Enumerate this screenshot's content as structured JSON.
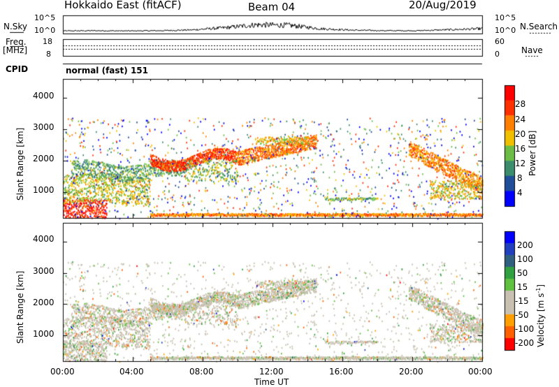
{
  "header": {
    "title": "Hokkaido East (fitACF)",
    "beam": "Beam 04",
    "date": "20/Aug/2019"
  },
  "strip_labels": {
    "nsky": "N.Sky",
    "nsearch": "N.Search",
    "freq": "Freq.",
    "freq_unit": "[MHz]",
    "nave": "Nave",
    "cpid": "CPID",
    "cpid_value": "normal (fast) 151"
  },
  "strip_ticks": {
    "nsky_top": "10^5",
    "nsky_bottom": "10^0",
    "nsearch_top": "10^5",
    "nsearch_bottom": "10^0",
    "freq_top": "18",
    "freq_bottom": "8",
    "nave_top": "60",
    "nave_bottom": "0"
  },
  "colors": {
    "power": [
      "#0000ff",
      "#1f4f99",
      "#3c8c6e",
      "#6cbd45",
      "#f0c000",
      "#ff8000",
      "#ff3000",
      "#ff0000"
    ],
    "velocity": [
      "#ff0000",
      "#ff6000",
      "#ffa000",
      "#c8c0b0",
      "#c8c0b0",
      "#60c040",
      "#30a040",
      "#306080",
      "#2040c0",
      "#0000ff"
    ]
  },
  "chart_data": [
    {
      "type": "line",
      "title": "N.Sky",
      "ylim_label": [
        "10^0",
        "10^5"
      ],
      "x": [
        "00:00",
        "02:00",
        "04:00",
        "06:00",
        "08:00",
        "10:00",
        "11:00",
        "12:00",
        "14:00",
        "16:00",
        "18:00",
        "20:00",
        "22:00",
        "24:00"
      ],
      "values": [
        0.5,
        0.6,
        0.5,
        0.6,
        0.9,
        1.8,
        3.0,
        2.8,
        1.4,
        0.8,
        0.6,
        0.6,
        1.0,
        1.4
      ]
    },
    {
      "type": "heatmap",
      "title": "Power",
      "xlabel": "",
      "ylabel": "Slant Range [km]",
      "colorbar_label": "Power [dB]",
      "colorbar_ticks": [
        "4",
        "8",
        "12",
        "16",
        "20",
        "24",
        "28"
      ],
      "yticks": [
        "1000",
        "2000",
        "3000",
        "4000"
      ],
      "xticks": [
        "00:00",
        "04:00",
        "08:00",
        "12:00",
        "16:00",
        "20:00",
        "00:00"
      ],
      "ylim": [
        180,
        4600
      ]
    },
    {
      "type": "heatmap",
      "title": "Velocity",
      "xlabel": "Time UT",
      "ylabel": "Slant Range [km]",
      "colorbar_label": "Velocity [m s-1]",
      "colorbar_ticks": [
        "-200",
        "-100",
        "-50",
        "-15",
        "15",
        "50",
        "100",
        "200"
      ],
      "yticks": [
        "1000",
        "2000",
        "3000",
        "4000"
      ],
      "xticks": [
        "00:00",
        "04:00",
        "08:00",
        "12:00",
        "16:00",
        "20:00",
        "00:00"
      ],
      "ylim": [
        180,
        4600
      ]
    }
  ]
}
